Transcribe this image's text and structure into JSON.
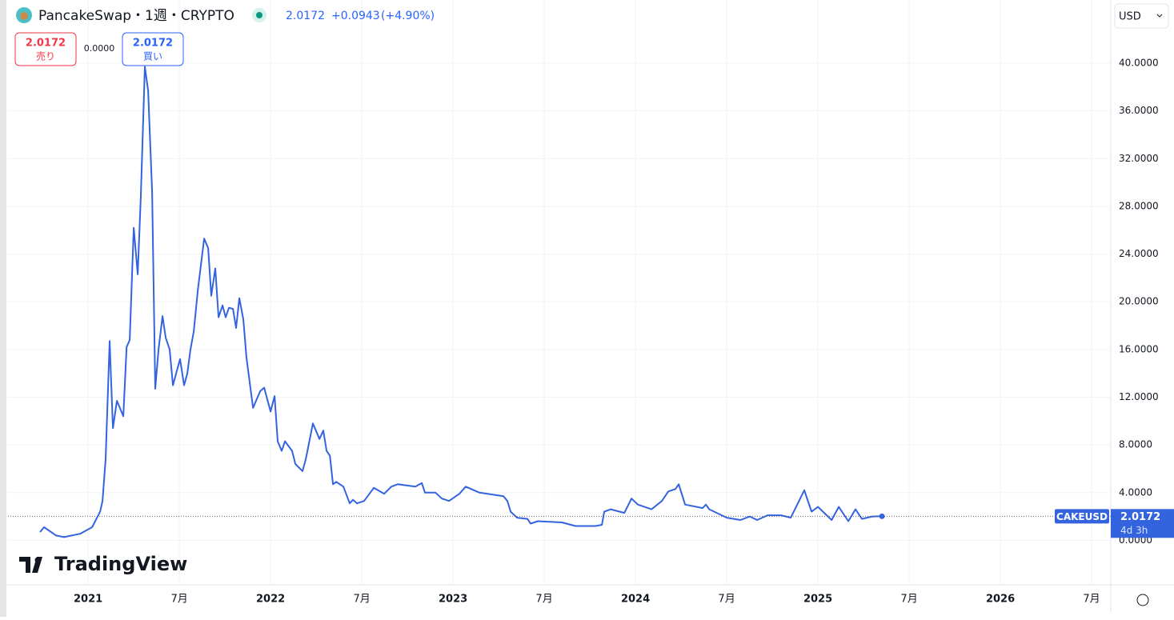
{
  "chart_data": {
    "type": "line",
    "title": "PancakeSwap・1週・CRYPTO",
    "x": [
      2020.737,
      2020.759,
      2020.825,
      2020.868,
      2020.956,
      2021.022,
      2021.066,
      2021.079,
      2021.096,
      2021.118,
      2021.136,
      2021.158,
      2021.193,
      2021.211,
      2021.228,
      2021.25,
      2021.272,
      2021.289,
      2021.311,
      2021.329,
      2021.351,
      2021.368,
      2021.386,
      2021.408,
      2021.425,
      2021.447,
      2021.465,
      2021.504,
      2021.526,
      2021.544,
      2021.561,
      2021.579,
      2021.601,
      2021.636,
      2021.658,
      2021.675,
      2021.697,
      2021.715,
      2021.737,
      2021.754,
      2021.772,
      2021.794,
      2021.811,
      2021.829,
      2021.851,
      2021.868,
      2021.904,
      2021.943,
      2021.965,
      2022.0,
      2022.022,
      2022.039,
      2022.061,
      2022.079,
      2022.118,
      2022.136,
      2022.175,
      2022.193,
      2022.232,
      2022.268,
      2022.289,
      2022.307,
      2022.325,
      2022.342,
      2022.36,
      2022.399,
      2022.434,
      2022.452,
      2022.474,
      2022.513,
      2022.566,
      2022.623,
      2022.662,
      2022.697,
      2022.794,
      2022.829,
      2022.846,
      2022.904,
      2022.939,
      2022.978,
      2023.035,
      2023.07,
      2023.145,
      2023.276,
      2023.298,
      2023.316,
      2023.351,
      2023.408,
      2023.425,
      2023.465,
      2023.596,
      2023.671,
      2023.781,
      2023.816,
      2023.829,
      2023.864,
      2023.939,
      2023.978,
      2024.013,
      2024.088,
      2024.145,
      2024.18,
      2024.219,
      2024.237,
      2024.272,
      2024.368,
      2024.386,
      2024.404,
      2024.5,
      2024.575,
      2024.627,
      2024.667,
      2024.724,
      2024.798,
      2024.851,
      2024.89,
      2024.925,
      2024.965,
      2025.0,
      2025.075,
      2025.114,
      2025.167,
      2025.206,
      2025.241,
      2025.298,
      2025.351
    ],
    "series": [
      {
        "name": "CAKEUSD",
        "color": "#3463e0",
        "values": [
          0.7,
          1.1,
          0.4,
          0.27,
          0.55,
          1.1,
          2.4,
          3.3,
          6.8,
          16.7,
          9.4,
          11.7,
          10.4,
          16.2,
          16.8,
          26.2,
          22.3,
          28.9,
          39.7,
          37.7,
          29.2,
          12.7,
          16.0,
          18.8,
          17.0,
          16.0,
          13.0,
          15.2,
          13.0,
          14.0,
          16.0,
          17.5,
          20.9,
          25.3,
          24.5,
          20.5,
          22.8,
          18.7,
          19.7,
          18.7,
          19.5,
          19.4,
          17.8,
          20.3,
          18.5,
          15.3,
          11.1,
          12.5,
          12.8,
          10.8,
          12.1,
          8.3,
          7.5,
          8.3,
          7.5,
          6.4,
          5.8,
          6.8,
          9.8,
          8.5,
          9.2,
          7.5,
          7.1,
          4.7,
          4.9,
          4.5,
          3.1,
          3.4,
          3.1,
          3.3,
          4.4,
          3.9,
          4.5,
          4.7,
          4.5,
          4.8,
          4.0,
          4.0,
          3.5,
          3.3,
          3.9,
          4.5,
          4.0,
          3.7,
          3.3,
          2.4,
          1.9,
          1.8,
          1.4,
          1.6,
          1.5,
          1.2,
          1.2,
          1.3,
          2.4,
          2.6,
          2.3,
          3.5,
          3.0,
          2.6,
          3.3,
          4.1,
          4.3,
          4.7,
          3.0,
          2.7,
          3.0,
          2.6,
          1.9,
          1.7,
          2.0,
          1.7,
          2.1,
          2.1,
          1.9,
          3.1,
          4.2,
          2.4,
          2.8,
          1.7,
          2.8,
          1.6,
          2.6,
          1.8,
          2.0,
          2.0172
        ]
      }
    ],
    "xlim": [
      2020.561,
      2026.605
    ],
    "ylim": [
      -3.73,
      45.3
    ],
    "xticks": [
      2021,
      {
        "value": 2021.5,
        "label": "7月"
      },
      2022,
      {
        "value": 2022.5,
        "label": "7月"
      },
      2023,
      {
        "value": 2023.5,
        "label": "7月"
      },
      2024,
      {
        "value": 2024.5,
        "label": "7月"
      },
      2025,
      {
        "value": 2025.5,
        "label": "7月"
      },
      2026,
      {
        "value": 2026.5,
        "label": "7月"
      }
    ],
    "yticks": [
      {
        "value": 0,
        "label": "0.0000"
      },
      {
        "value": 4,
        "label": "4.0000"
      },
      {
        "value": 8,
        "label": "8.0000"
      },
      {
        "value": 12,
        "label": "12.0000"
      },
      {
        "value": 16,
        "label": "16.0000"
      },
      {
        "value": 20,
        "label": "20.0000"
      },
      {
        "value": 24,
        "label": "24.0000"
      },
      {
        "value": 28,
        "label": "28.0000"
      },
      {
        "value": 32,
        "label": "32.0000"
      },
      {
        "value": 36,
        "label": "36.0000"
      },
      {
        "value": 40,
        "label": "40.0000"
      }
    ],
    "grid": true,
    "countdown": "4d 3h"
  },
  "header": {
    "change": "+0.0943",
    "change_pct": "(+4.90%)",
    "sell_label": "売り",
    "spread": "0.0000",
    "buy_label": "買い",
    "currency": "USD",
    "logo": "TradingView"
  }
}
